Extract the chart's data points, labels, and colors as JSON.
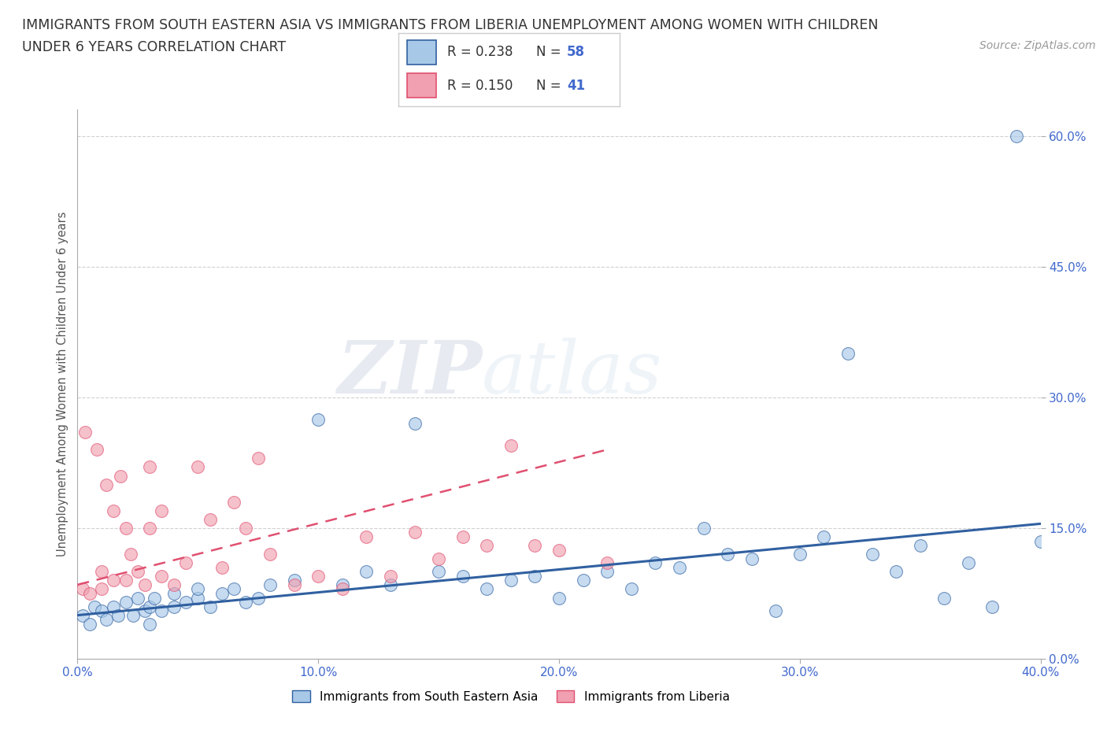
{
  "title_line1": "IMMIGRANTS FROM SOUTH EASTERN ASIA VS IMMIGRANTS FROM LIBERIA UNEMPLOYMENT AMONG WOMEN WITH CHILDREN",
  "title_line2": "UNDER 6 YEARS CORRELATION CHART",
  "source": "Source: ZipAtlas.com",
  "ylabel": "Unemployment Among Women with Children Under 6 years",
  "xlim": [
    0.0,
    40.0
  ],
  "ylim": [
    0.0,
    63.0
  ],
  "xticks": [
    0.0,
    10.0,
    20.0,
    30.0,
    40.0
  ],
  "yticks": [
    0.0,
    15.0,
    30.0,
    45.0,
    60.0
  ],
  "xticklabels": [
    "0.0%",
    "10.0%",
    "20.0%",
    "30.0%",
    "40.0%"
  ],
  "yticklabels": [
    "0.0%",
    "15.0%",
    "30.0%",
    "45.0%",
    "60.0%"
  ],
  "color_blue": "#a8c8e8",
  "color_pink": "#f0a0b0",
  "color_blue_line": "#3060a0",
  "color_pink_line": "#e05070",
  "color_tick": "#4169CD",
  "R_blue": 0.238,
  "N_blue": 58,
  "R_pink": 0.15,
  "N_pink": 41,
  "legend_label_blue": "Immigrants from South Eastern Asia",
  "legend_label_pink": "Immigrants from Liberia",
  "watermark": "ZIPatlas",
  "blue_x": [
    0.2,
    0.5,
    0.7,
    1.0,
    1.2,
    1.5,
    1.7,
    2.0,
    2.3,
    2.5,
    2.8,
    3.0,
    3.0,
    3.2,
    3.5,
    4.0,
    4.0,
    4.5,
    5.0,
    5.0,
    5.5,
    6.0,
    6.5,
    7.0,
    7.5,
    8.0,
    9.0,
    10.0,
    11.0,
    12.0,
    13.0,
    14.0,
    15.0,
    16.0,
    17.0,
    18.0,
    19.0,
    20.0,
    21.0,
    22.0,
    23.0,
    24.0,
    25.0,
    26.0,
    27.0,
    28.0,
    29.0,
    30.0,
    31.0,
    32.0,
    33.0,
    34.0,
    35.0,
    36.0,
    37.0,
    38.0,
    39.0,
    40.0
  ],
  "blue_y": [
    5.0,
    4.0,
    6.0,
    5.5,
    4.5,
    6.0,
    5.0,
    6.5,
    5.0,
    7.0,
    5.5,
    6.0,
    4.0,
    7.0,
    5.5,
    6.0,
    7.5,
    6.5,
    7.0,
    8.0,
    6.0,
    7.5,
    8.0,
    6.5,
    7.0,
    8.5,
    9.0,
    27.5,
    8.5,
    10.0,
    8.5,
    27.0,
    10.0,
    9.5,
    8.0,
    9.0,
    9.5,
    7.0,
    9.0,
    10.0,
    8.0,
    11.0,
    10.5,
    15.0,
    12.0,
    11.5,
    5.5,
    12.0,
    14.0,
    35.0,
    12.0,
    10.0,
    13.0,
    7.0,
    11.0,
    6.0,
    60.0,
    13.5
  ],
  "pink_x": [
    0.2,
    0.3,
    0.5,
    0.8,
    1.0,
    1.0,
    1.2,
    1.5,
    1.5,
    1.8,
    2.0,
    2.0,
    2.2,
    2.5,
    2.8,
    3.0,
    3.0,
    3.5,
    3.5,
    4.0,
    4.5,
    5.0,
    5.5,
    6.0,
    6.5,
    7.0,
    7.5,
    8.0,
    9.0,
    10.0,
    11.0,
    12.0,
    13.0,
    14.0,
    15.0,
    16.0,
    17.0,
    18.0,
    19.0,
    20.0,
    22.0
  ],
  "pink_y": [
    8.0,
    26.0,
    7.5,
    24.0,
    10.0,
    8.0,
    20.0,
    17.0,
    9.0,
    21.0,
    15.0,
    9.0,
    12.0,
    10.0,
    8.5,
    15.0,
    22.0,
    9.5,
    17.0,
    8.5,
    11.0,
    22.0,
    16.0,
    10.5,
    18.0,
    15.0,
    23.0,
    12.0,
    8.5,
    9.5,
    8.0,
    14.0,
    9.5,
    14.5,
    11.5,
    14.0,
    13.0,
    24.5,
    13.0,
    12.5,
    11.0
  ],
  "blue_trend_x": [
    0.0,
    40.0
  ],
  "blue_trend_y": [
    5.0,
    15.5
  ],
  "pink_trend_x": [
    0.0,
    22.0
  ],
  "pink_trend_y": [
    8.5,
    24.0
  ]
}
